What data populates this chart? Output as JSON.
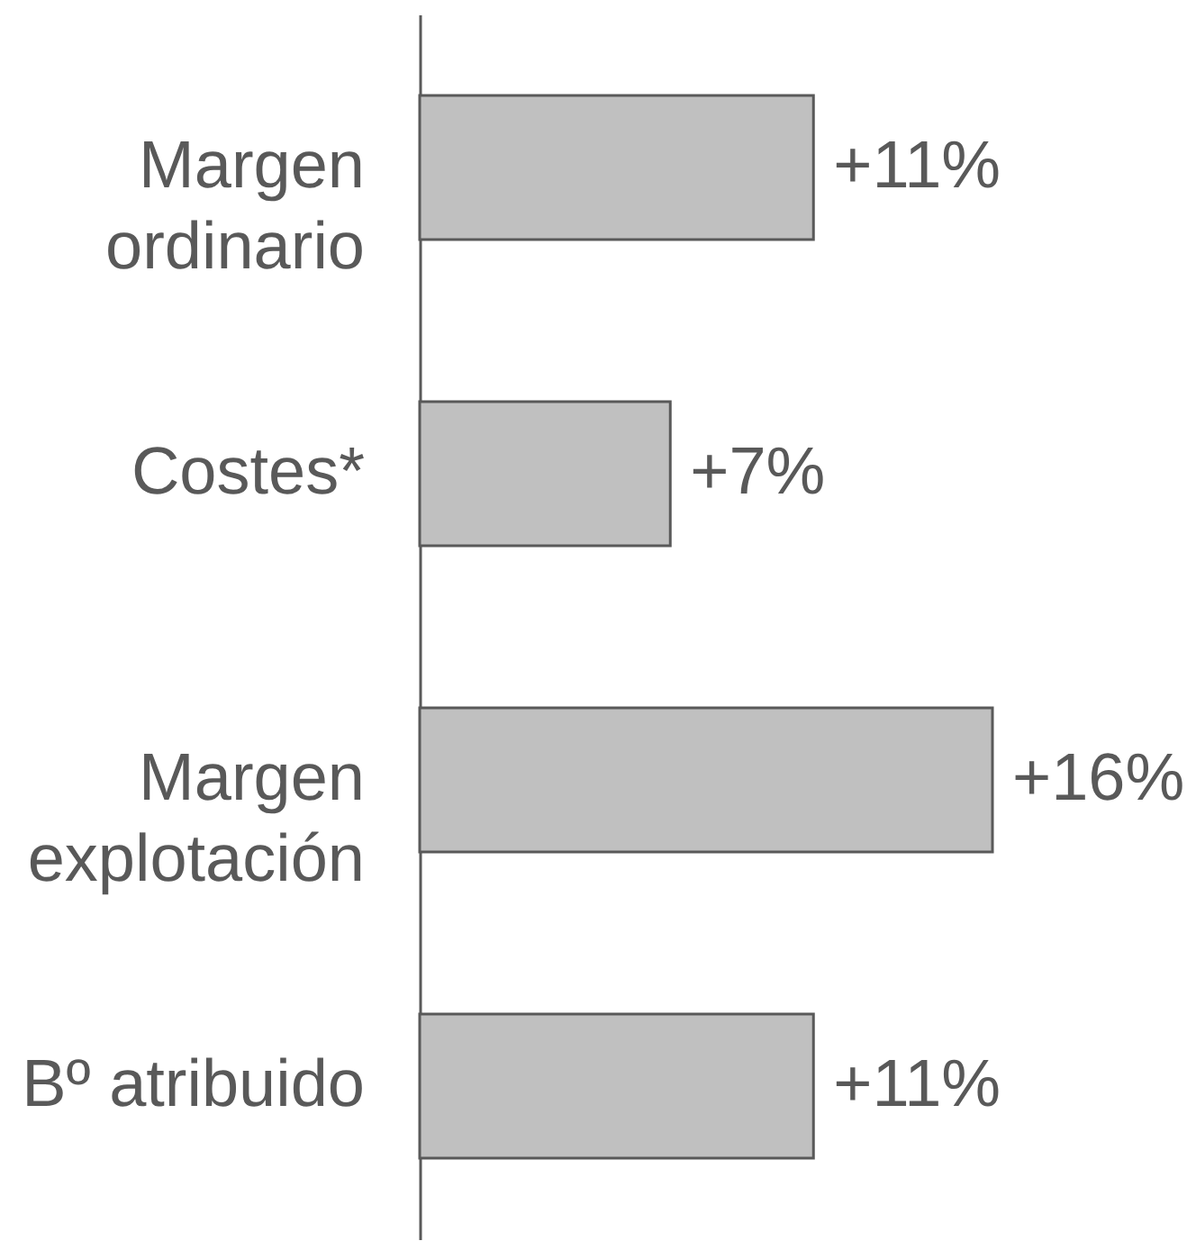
{
  "chart_data": {
    "type": "bar",
    "orientation": "horizontal",
    "categories": [
      "Margen\nordinario",
      "Costes*",
      "Margen\nexplotación",
      "Bº atribuido"
    ],
    "values": [
      11,
      7,
      16,
      11
    ],
    "value_labels": [
      "+11%",
      "+7%",
      "+16%",
      "+11%"
    ],
    "color": "#c0c0c0",
    "tick_labels": "y"
  }
}
